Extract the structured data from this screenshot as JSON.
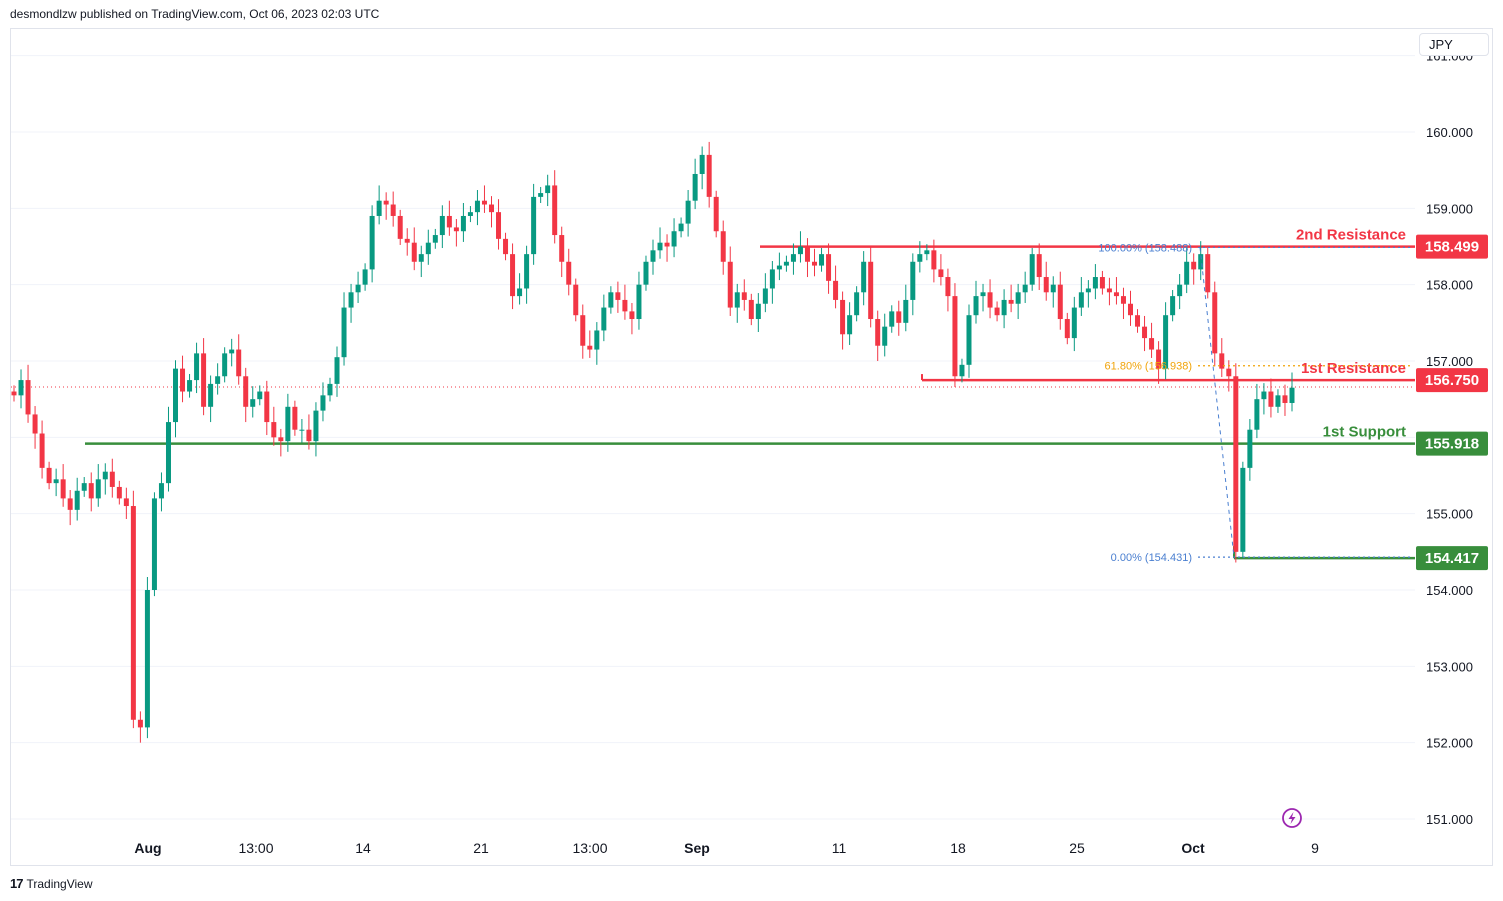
{
  "header": {
    "publisher": "desmondlzw published on TradingView.com, Oct 06, 2023 02:03 UTC"
  },
  "footer": {
    "brand": "TradingView",
    "logo_text": "17"
  },
  "currency_button": "JPY",
  "colors": {
    "up": "#089981",
    "down": "#f23645",
    "resistance": "#f23645",
    "support": "#388e3c",
    "fib_orange": "#f0a30a",
    "fib_blue": "#2962ff",
    "grid": "#f0f3fa"
  },
  "icons": {
    "replay": "lightning-icon"
  },
  "chart_data": {
    "type": "candlestick",
    "y_axis": {
      "range": [
        150.7,
        161.6
      ],
      "ticks": [
        "151.000",
        "152.000",
        "153.000",
        "154.000",
        "155.000",
        "156.000",
        "157.000",
        "158.000",
        "159.000",
        "160.000",
        "161.000"
      ]
    },
    "x_axis": {
      "labels": [
        "Aug",
        "13:00",
        "14",
        "21",
        "13:00",
        "Sep",
        "11",
        "18",
        "25",
        "Oct",
        "9"
      ],
      "bold_labels": [
        "Aug",
        "Sep",
        "Oct"
      ]
    },
    "current_price": 156.66,
    "levels": [
      {
        "name": "2nd Resistance",
        "value": "158.499",
        "price": 158.499,
        "kind": "resistance"
      },
      {
        "name": "1st Resistance",
        "value": "156.750",
        "price": 156.75,
        "kind": "resistance"
      },
      {
        "name": "1st Support",
        "value": "155.918",
        "price": 155.918,
        "kind": "support"
      },
      {
        "name": "",
        "value": "154.417",
        "price": 154.417,
        "kind": "support"
      }
    ],
    "fibonacci": [
      {
        "label": "100.00% (158.488)",
        "price": 158.488,
        "color": "blue"
      },
      {
        "label": "61.80% (156.938)",
        "price": 156.938,
        "color": "orange"
      },
      {
        "label": "0.00% (154.431)",
        "price": 154.431,
        "color": "blue"
      }
    ],
    "series": [
      {
        "name": "",
        "close_path": [
          156.55,
          156.75,
          156.3,
          156.05,
          155.6,
          155.4,
          155.45,
          155.2,
          155.05,
          155.3,
          155.4,
          155.2,
          155.45,
          155.55,
          155.35,
          155.2,
          155.1,
          152.3,
          152.2,
          154.0,
          155.2,
          155.4,
          156.2,
          156.9,
          156.6,
          156.75,
          157.1,
          156.4,
          156.7,
          156.8,
          157.1,
          157.15,
          156.8,
          156.4,
          156.5,
          156.6,
          156.2,
          156.0,
          155.95,
          156.4,
          156.1,
          156.1,
          155.95,
          156.35,
          156.55,
          156.7,
          157.05,
          157.7,
          157.9,
          158.0,
          158.2,
          158.9,
          159.1,
          159.05,
          158.9,
          158.6,
          158.55,
          158.3,
          158.4,
          158.55,
          158.65,
          158.9,
          158.75,
          158.7,
          158.9,
          158.95,
          159.1,
          159.05,
          158.95,
          158.6,
          158.4,
          157.85,
          157.95,
          158.4,
          159.15,
          159.2,
          159.3,
          158.65,
          158.3,
          158.0,
          157.6,
          157.2,
          157.15,
          157.4,
          157.7,
          157.9,
          157.8,
          157.65,
          157.55,
          158.0,
          158.3,
          158.45,
          158.55,
          158.5,
          158.7,
          158.8,
          159.1,
          159.45,
          159.7,
          159.15,
          158.7,
          158.3,
          157.7,
          157.9,
          157.8,
          157.55,
          157.75,
          157.95,
          158.2,
          158.25,
          158.3,
          158.4,
          158.5,
          158.3,
          158.25,
          158.4,
          158.05,
          157.8,
          157.35,
          157.6,
          157.9,
          158.3,
          157.55,
          157.2,
          157.45,
          157.65,
          157.5,
          157.8,
          158.3,
          158.4,
          158.45,
          158.2,
          158.1,
          157.85,
          156.8,
          156.95,
          157.6,
          157.85,
          157.9,
          157.7,
          157.6,
          157.8,
          157.75,
          157.9,
          158.0,
          158.4,
          158.1,
          157.9,
          158.0,
          157.55,
          157.3,
          157.7,
          157.9,
          157.95,
          158.1,
          157.95,
          157.9,
          157.85,
          157.75,
          157.6,
          157.45,
          157.3,
          157.15,
          156.9,
          157.6,
          157.85,
          158.0,
          158.3,
          158.2,
          158.4,
          157.9,
          157.1,
          156.9,
          156.8,
          154.5,
          155.6,
          156.1,
          156.5,
          156.6,
          156.4,
          156.55,
          156.45,
          156.65
        ]
      }
    ]
  }
}
